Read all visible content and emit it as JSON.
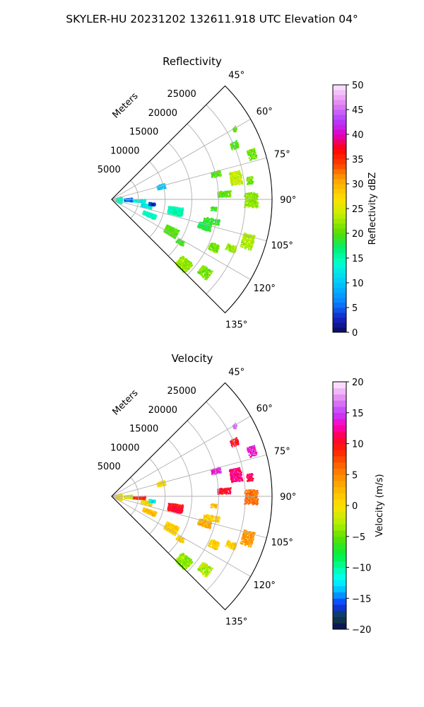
{
  "figure": {
    "suptitle": "SKYLER-HU  20231202  132611.918 UTC Elevation 04°"
  },
  "chart_data": [
    {
      "type": "heatmap",
      "title": "Reflectivity",
      "projection": "polar sector (PPI)",
      "azimuth_range_deg": [
        45,
        135
      ],
      "azimuth_ticks": [
        "45°",
        "60°",
        "75°",
        "90°",
        "105°",
        "120°",
        "135°"
      ],
      "range_label": "Meters",
      "range_ticks": [
        "5000",
        "10000",
        "15000",
        "20000",
        "25000"
      ],
      "range_max_m": 30000,
      "grid": true,
      "colorbar": {
        "label": "Reflectivity dBZ",
        "min": 0,
        "max": 50,
        "ticks": [
          "0",
          "5",
          "10",
          "15",
          "20",
          "25",
          "30",
          "35",
          "40",
          "45",
          "50"
        ]
      },
      "echoes": [
        {
          "az": 60,
          "r": 26500,
          "daz": 2,
          "dr": 800,
          "value": 20
        },
        {
          "az": 66,
          "r": 25000,
          "daz": 3,
          "dr": 1500,
          "value": 20
        },
        {
          "az": 72,
          "r": 27500,
          "daz": 4,
          "dr": 1500,
          "value": 21
        },
        {
          "az": 76,
          "r": 20000,
          "daz": 3,
          "dr": 1800,
          "value": 20
        },
        {
          "az": 80,
          "r": 23500,
          "daz": 6,
          "dr": 2200,
          "value": 24
        },
        {
          "az": 82,
          "r": 26000,
          "daz": 3,
          "dr": 1200,
          "value": 21
        },
        {
          "az": 87,
          "r": 21000,
          "daz": 3,
          "dr": 2500,
          "value": 20
        },
        {
          "az": 90,
          "r": 26000,
          "daz": 6,
          "dr": 2500,
          "value": 22
        },
        {
          "az": 95,
          "r": 19000,
          "daz": 2,
          "dr": 1200,
          "value": 19
        },
        {
          "az": 100,
          "r": 12000,
          "daz": 7,
          "dr": 2800,
          "value": 15
        },
        {
          "az": 102,
          "r": 19000,
          "daz": 3,
          "dr": 3000,
          "value": 19
        },
        {
          "az": 106,
          "r": 18000,
          "daz": 4,
          "dr": 2500,
          "value": 18
        },
        {
          "az": 107,
          "r": 26500,
          "daz": 6,
          "dr": 2200,
          "value": 23
        },
        {
          "az": 112,
          "r": 24000,
          "daz": 3,
          "dr": 1800,
          "value": 22
        },
        {
          "az": 115,
          "r": 21000,
          "daz": 4,
          "dr": 1800,
          "value": 21
        },
        {
          "az": 118,
          "r": 12500,
          "daz": 7,
          "dr": 2500,
          "value": 20
        },
        {
          "az": 122,
          "r": 15000,
          "daz": 3,
          "dr": 1500,
          "value": 19
        },
        {
          "az": 128,
          "r": 22000,
          "daz": 5,
          "dr": 2200,
          "value": 21
        },
        {
          "az": 132,
          "r": 18000,
          "daz": 7,
          "dr": 2600,
          "value": 22
        },
        {
          "az": 75,
          "r": 9500,
          "daz": 5,
          "dr": 1500,
          "value": 10
        },
        {
          "az": 92,
          "r": 5000,
          "daz": 6,
          "dr": 2500,
          "value": 13
        },
        {
          "az": 100,
          "r": 6500,
          "daz": 6,
          "dr": 2000,
          "value": 13
        },
        {
          "az": 112,
          "r": 7500,
          "daz": 6,
          "dr": 2500,
          "value": 14
        },
        {
          "az": 90,
          "r": 3000,
          "daz": 10,
          "dr": 1500,
          "value": 6
        },
        {
          "az": 92,
          "r": 1300,
          "daz": 40,
          "dr": 1100,
          "value": 14
        },
        {
          "az": 96,
          "r": 7500,
          "daz": 4,
          "dr": 1200,
          "value": 3
        }
      ]
    },
    {
      "type": "heatmap",
      "title": "Velocity",
      "projection": "polar sector (PPI)",
      "azimuth_range_deg": [
        45,
        135
      ],
      "azimuth_ticks": [
        "45°",
        "60°",
        "75°",
        "90°",
        "105°",
        "120°",
        "135°"
      ],
      "range_label": "Meters",
      "range_ticks": [
        "5000",
        "10000",
        "15000",
        "20000",
        "25000"
      ],
      "range_max_m": 30000,
      "grid": true,
      "colorbar": {
        "label": "Velocity (m/s)",
        "min": -20,
        "max": 20,
        "ticks": [
          "−20",
          "−15",
          "−10",
          "−5",
          "0",
          "5",
          "10",
          "15",
          "20"
        ]
      },
      "echoes": [
        {
          "az": 60,
          "r": 26500,
          "daz": 2,
          "dr": 800,
          "value": 16
        },
        {
          "az": 66,
          "r": 25000,
          "daz": 3,
          "dr": 1500,
          "value": 10
        },
        {
          "az": 72,
          "r": 27500,
          "daz": 4,
          "dr": 1500,
          "value": 14
        },
        {
          "az": 76,
          "r": 20000,
          "daz": 3,
          "dr": 1800,
          "value": 14
        },
        {
          "az": 80,
          "r": 23500,
          "daz": 6,
          "dr": 2200,
          "value": 12
        },
        {
          "az": 82,
          "r": 26000,
          "daz": 3,
          "dr": 1200,
          "value": 11
        },
        {
          "az": 87,
          "r": 21000,
          "daz": 3,
          "dr": 2500,
          "value": 10
        },
        {
          "az": 90,
          "r": 26000,
          "daz": 6,
          "dr": 2500,
          "value": 6
        },
        {
          "az": 95,
          "r": 19000,
          "daz": 2,
          "dr": 1200,
          "value": 2
        },
        {
          "az": 100,
          "r": 12000,
          "daz": 7,
          "dr": 2800,
          "value": 10
        },
        {
          "az": 102,
          "r": 19000,
          "daz": 3,
          "dr": 3000,
          "value": 1
        },
        {
          "az": 106,
          "r": 18000,
          "daz": 4,
          "dr": 2500,
          "value": 3
        },
        {
          "az": 107,
          "r": 26500,
          "daz": 6,
          "dr": 2200,
          "value": 4
        },
        {
          "az": 112,
          "r": 24000,
          "daz": 3,
          "dr": 1800,
          "value": 1
        },
        {
          "az": 115,
          "r": 21000,
          "daz": 4,
          "dr": 1800,
          "value": 1
        },
        {
          "az": 118,
          "r": 12500,
          "daz": 7,
          "dr": 2500,
          "value": 1
        },
        {
          "az": 122,
          "r": 15000,
          "daz": 3,
          "dr": 1500,
          "value": 1
        },
        {
          "az": 128,
          "r": 22000,
          "daz": 5,
          "dr": 2200,
          "value": -3
        },
        {
          "az": 132,
          "r": 18000,
          "daz": 7,
          "dr": 2600,
          "value": -4
        },
        {
          "az": 75,
          "r": 9500,
          "daz": 5,
          "dr": 1500,
          "value": 0
        },
        {
          "az": 92,
          "r": 5000,
          "daz": 6,
          "dr": 2500,
          "value": 9
        },
        {
          "az": 100,
          "r": 6500,
          "daz": 6,
          "dr": 2000,
          "value": 1
        },
        {
          "az": 112,
          "r": 7500,
          "daz": 6,
          "dr": 2500,
          "value": 2
        },
        {
          "az": 90,
          "r": 3000,
          "daz": 10,
          "dr": 1500,
          "value": -1
        },
        {
          "az": 92,
          "r": 1300,
          "daz": 40,
          "dr": 1100,
          "value": 0
        },
        {
          "az": 96,
          "r": 7500,
          "daz": 4,
          "dr": 1200,
          "value": -12
        }
      ]
    }
  ]
}
